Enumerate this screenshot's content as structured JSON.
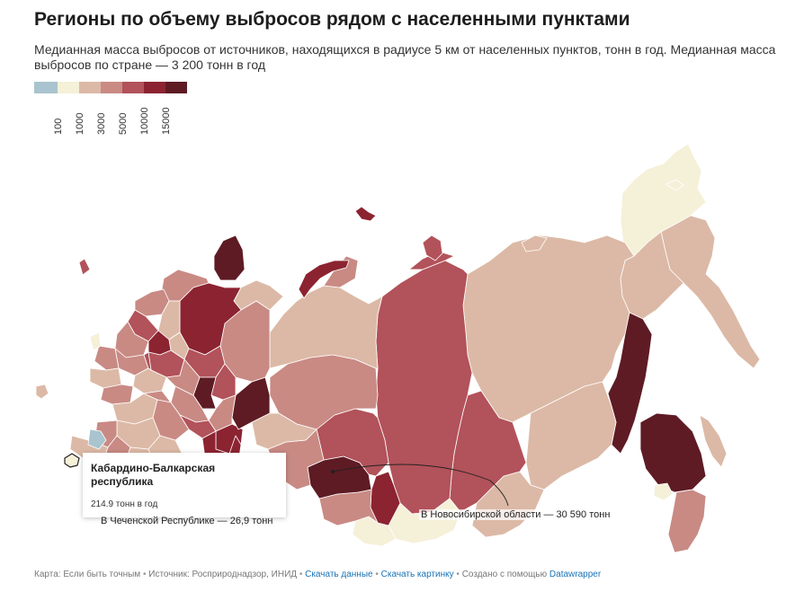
{
  "title": "Регионы по объему выбросов рядом с населенными пунктами",
  "subtitle": "Медианная масса выбросов от источников, находящихся в радиусе 5 км от населенных пунктов, тонн в год. Медианная масса выбросов по стране — 3 200 тонн в год",
  "legend": {
    "colors": [
      "#a9c4ce",
      "#f5f0d8",
      "#dcb9a6",
      "#c98a84",
      "#b2525a",
      "#8c2331",
      "#5e1b24"
    ],
    "ticks": [
      "100",
      "1000",
      "3000",
      "5000",
      "10000",
      "15000"
    ]
  },
  "tooltip": {
    "title": "Кабардино-Балкарская республика",
    "value": "214.9 тонн в год"
  },
  "annotations": {
    "chechnya": "В Чеченской Республике — 26,9 тонн",
    "novosibirsk": "В Новосибирской области — 30 590 тонн"
  },
  "footer": {
    "map_text": "Карта: Если быть точным",
    "source_text": "Источник: Росприроднадзор, ИНИД",
    "download_data": "Скачать данные",
    "download_image": "Скачать картинку",
    "created_text": "Создано с помощью",
    "tool": "Datawrapper",
    "separator": "•"
  }
}
